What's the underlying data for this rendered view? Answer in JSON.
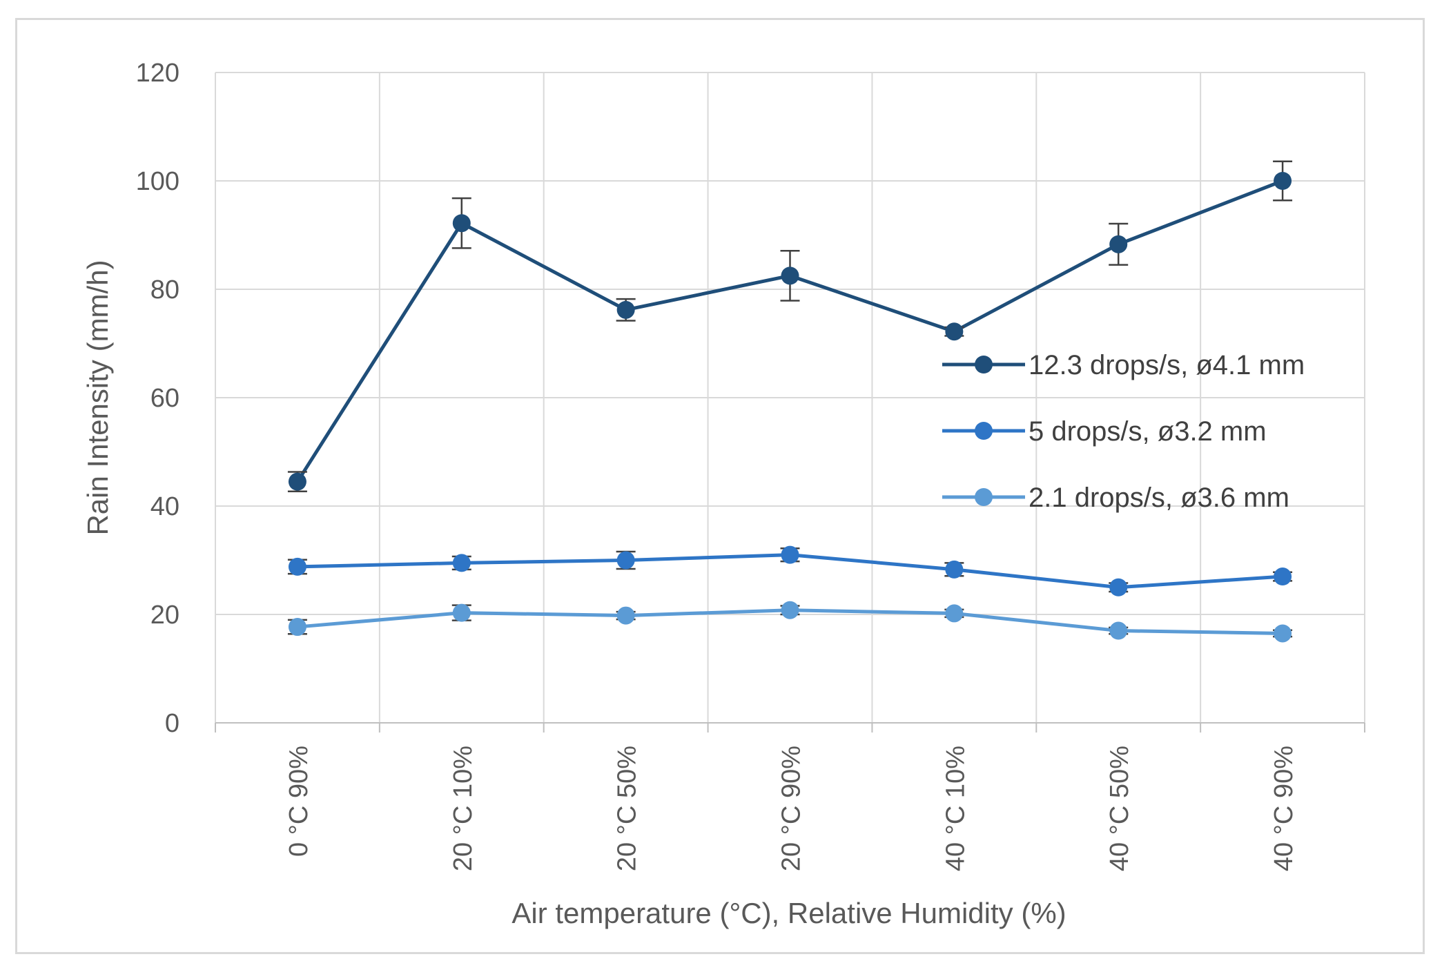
{
  "chart_data": {
    "type": "line",
    "title": "",
    "xlabel": "Air temperature  (°C), Relative Humidity (%)",
    "ylabel": "Rain Intensity (mm/h)",
    "ylim": [
      0,
      120
    ],
    "yticks": [
      0,
      20,
      40,
      60,
      80,
      100,
      120
    ],
    "grid": true,
    "legend_position": "right",
    "categories": [
      "0 °C 90%",
      "20 °C 10%",
      "20 °C 50%",
      "20 °C 90%",
      "40 °C 10%",
      "40 °C 50%",
      "40 °C 90%"
    ],
    "series": [
      {
        "name": "12.3 drops/s, ø4.1 mm",
        "color": "#1f4e79",
        "values": [
          44.5,
          92.2,
          76.2,
          82.5,
          72.2,
          88.3,
          100.0
        ],
        "errors": [
          1.8,
          4.6,
          2.0,
          4.6,
          0.8,
          3.8,
          3.6
        ]
      },
      {
        "name": "5 drops/s, ø3.2 mm",
        "color": "#2e75c6",
        "values": [
          28.8,
          29.5,
          30.0,
          31.0,
          28.3,
          25.0,
          27.0
        ],
        "errors": [
          1.3,
          1.2,
          1.6,
          1.2,
          1.2,
          0.8,
          0.8
        ]
      },
      {
        "name": "2.1 drops/s, ø3.6 mm",
        "color": "#5b9bd5",
        "values": [
          17.7,
          20.3,
          19.8,
          20.8,
          20.2,
          17.0,
          16.5
        ],
        "errors": [
          1.3,
          1.4,
          0.7,
          0.8,
          0.7,
          0.6,
          0.6
        ]
      }
    ]
  }
}
